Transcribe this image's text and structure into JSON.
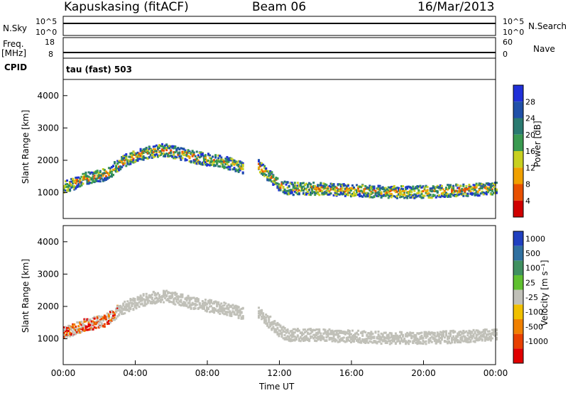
{
  "header": {
    "site": "Kapuskasing (fitACF)",
    "beam": "Beam 06",
    "date": "16/Mar/2013"
  },
  "strips": {
    "nsky_label": "N.Sky",
    "nsky_hi": "10^5",
    "nsky_lo": "10^0",
    "nsearch_label": "N.Search",
    "nsearch_hi": "10^5",
    "nsearch_lo": "10^0",
    "freq_label": "Freq.",
    "freq_unit": "[MHz]",
    "freq_hi": "18",
    "freq_lo": "8",
    "nave_label": "Nave",
    "nave_hi": "60",
    "nave_lo": "0",
    "cpid_label": "CPID",
    "cpid_value": "tau (fast) 503"
  },
  "chart_data": [
    {
      "type": "heatmap",
      "panel": "power",
      "xlabel": "",
      "ylabel": "Slant Range [km]",
      "xlim": [
        0,
        24
      ],
      "ylim": [
        200,
        4500
      ],
      "yticks": [
        1000,
        2000,
        3000,
        4000
      ],
      "colorbar": {
        "label": "Power [dB]",
        "ticks": [
          "4",
          "8",
          "12",
          "16",
          "20",
          "24",
          "28"
        ],
        "colors": [
          "#2030d8",
          "#2050a8",
          "#2a7a70",
          "#3a9a50",
          "#c8d020",
          "#f0a000",
          "#e85000",
          "#d00000"
        ]
      },
      "scatter_bands": [
        {
          "t": [
            0.0,
            0.5,
            1.0,
            1.5,
            2.0,
            2.5,
            3.0,
            3.5,
            4.0,
            4.5,
            5.0,
            5.5,
            6.0,
            7.0,
            8.0,
            9.0,
            10.0
          ],
          "range": [
            1200,
            1300,
            1450,
            1500,
            1550,
            1650,
            1900,
            2050,
            2150,
            2250,
            2300,
            2350,
            2300,
            2150,
            2050,
            1950,
            1800
          ]
        },
        {
          "t": [
            10.8,
            11.5,
            12.0,
            12.5,
            13.0,
            14.0,
            16.0,
            18.0,
            20.0,
            22.0,
            24.0
          ],
          "range": [
            1850,
            1500,
            1250,
            1150,
            1150,
            1150,
            1100,
            1050,
            1050,
            1100,
            1150
          ]
        }
      ]
    },
    {
      "type": "heatmap",
      "panel": "velocity",
      "xlabel": "Time UT",
      "ylabel": "Slant Range [km]",
      "xlim": [
        0,
        24
      ],
      "ylim": [
        200,
        4500
      ],
      "xticks": [
        "00:00",
        "04:00",
        "08:00",
        "12:00",
        "16:00",
        "20:00",
        "00:00"
      ],
      "yticks": [
        1000,
        2000,
        3000,
        4000
      ],
      "colorbar": {
        "label": "Velocity [m s⁻¹]",
        "ticks": [
          "1000",
          "500",
          "100",
          "25",
          "-25",
          "-100",
          "-500",
          "-1000"
        ],
        "colors": [
          "#2040c0",
          "#3070a0",
          "#409060",
          "#60c030",
          "#c0c0b8",
          "#f0c000",
          "#f08000",
          "#e84000",
          "#e00000"
        ]
      }
    }
  ]
}
